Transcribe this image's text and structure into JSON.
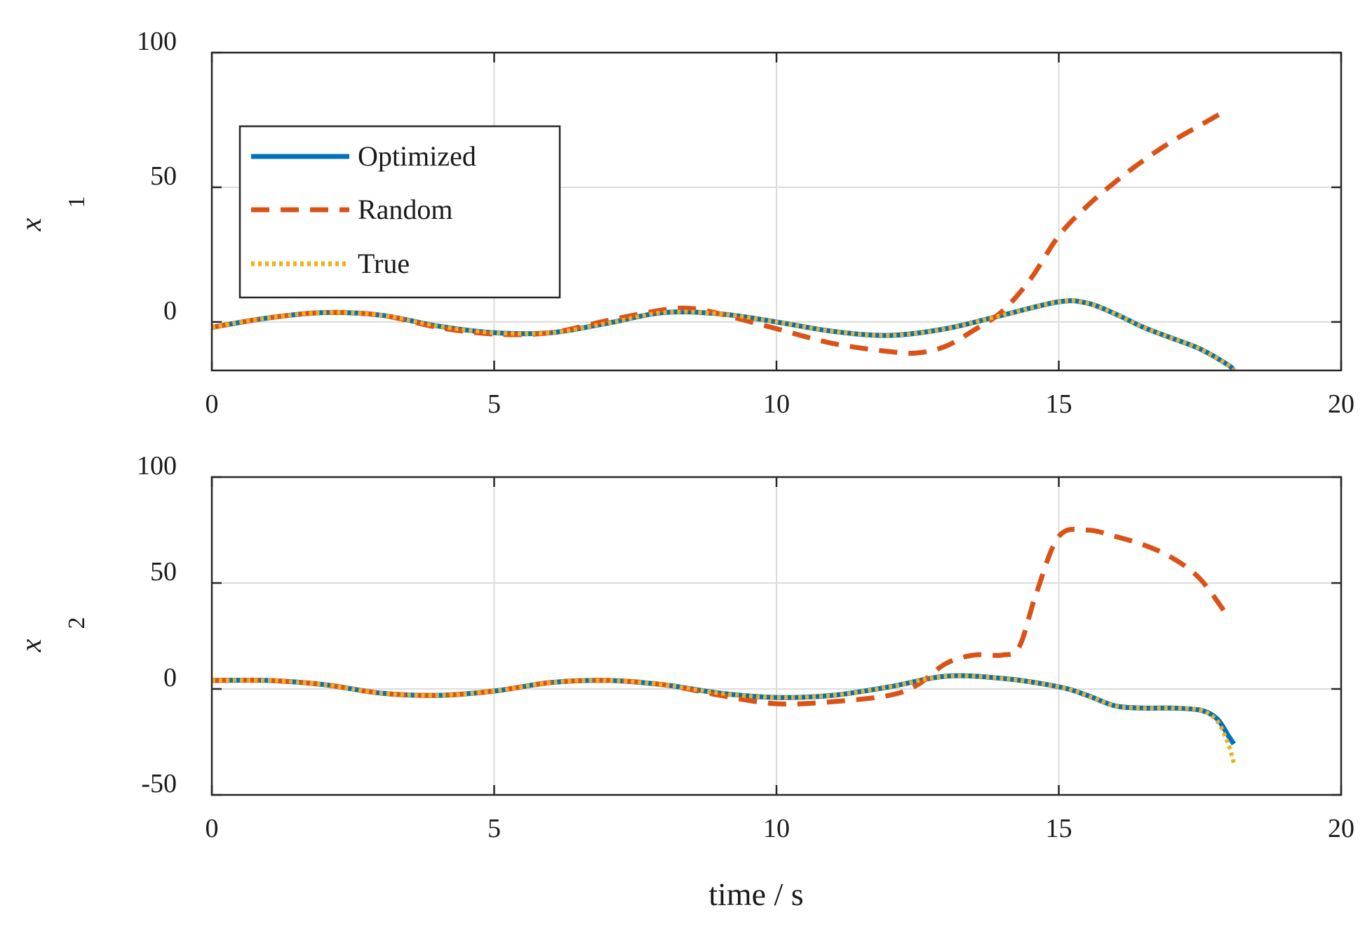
{
  "chart_data": [
    {
      "type": "line",
      "id": "x1",
      "ylabel": "x",
      "ylabel_sub": "1",
      "xlabel": "",
      "xlim": [
        0,
        20
      ],
      "ylim": [
        -18,
        100
      ],
      "xticks": [
        0,
        5,
        10,
        15,
        20
      ],
      "xtick_labels": [
        "0",
        "5",
        "10",
        "15",
        "20"
      ],
      "yticks": [
        0,
        50,
        100
      ],
      "ytick_labels": [
        "0",
        "50",
        "100"
      ],
      "grid": true,
      "legend": {
        "placement": "upper-left",
        "entries": [
          "Optimized",
          "Random",
          "True"
        ]
      },
      "series": [
        {
          "name": "Optimized",
          "style": "solid",
          "color": "#0072BD",
          "x": [
            0,
            1,
            2,
            3,
            4,
            5,
            6,
            7,
            8,
            9,
            10,
            11,
            12,
            13,
            14,
            15,
            15.5,
            16,
            16.5,
            17,
            17.5,
            18,
            18.1
          ],
          "y": [
            -2,
            1.5,
            3.5,
            2.5,
            -1.5,
            -4,
            -4,
            -0.5,
            3.5,
            3,
            0,
            -3.5,
            -5,
            -2.5,
            2.5,
            7.5,
            7,
            3,
            -2,
            -6,
            -10,
            -16,
            -18
          ]
        },
        {
          "name": "Random",
          "style": "dashed",
          "color": "#D95319",
          "x": [
            0,
            1,
            2,
            3,
            4,
            5,
            6,
            7,
            8,
            8.5,
            9,
            10,
            11,
            12,
            12.5,
            13,
            13.5,
            14,
            14.5,
            15,
            15.5,
            16,
            16.5,
            17,
            17.5,
            18
          ],
          "y": [
            -2,
            1.5,
            3.5,
            2.5,
            -2,
            -4.5,
            -4,
            0.5,
            4.5,
            5,
            3,
            -2.5,
            -8,
            -11,
            -11.5,
            -9,
            -3,
            4,
            16,
            32,
            43,
            52,
            60,
            67,
            73,
            79
          ]
        },
        {
          "name": "True",
          "style": "dotted",
          "color": "#EDB120",
          "x": [
            0,
            1,
            2,
            3,
            4,
            5,
            6,
            7,
            8,
            9,
            10,
            11,
            12,
            13,
            14,
            15,
            15.5,
            16,
            16.5,
            17,
            17.5,
            18,
            18.1
          ],
          "y": [
            -2,
            1.5,
            3.5,
            2.5,
            -1.5,
            -4,
            -4,
            -0.5,
            3.5,
            3,
            0,
            -3.5,
            -5,
            -2.5,
            2.5,
            7.5,
            7,
            3,
            -2,
            -6,
            -10,
            -16,
            -18
          ]
        }
      ]
    },
    {
      "type": "line",
      "id": "x2",
      "ylabel": "x",
      "ylabel_sub": "2",
      "xlabel": "time / s",
      "xlim": [
        0,
        20
      ],
      "ylim": [
        -50,
        100
      ],
      "xticks": [
        0,
        5,
        10,
        15,
        20
      ],
      "xtick_labels": [
        "0",
        "5",
        "10",
        "15",
        "20"
      ],
      "yticks": [
        -50,
        0,
        50,
        100
      ],
      "ytick_labels": [
        "-50",
        "0",
        "50",
        "100"
      ],
      "grid": true,
      "series": [
        {
          "name": "Optimized",
          "style": "solid",
          "color": "#0072BD",
          "x": [
            0,
            1,
            2,
            3,
            4,
            5,
            6,
            7,
            8,
            9,
            10,
            11,
            12,
            13,
            14,
            15,
            15.5,
            16,
            16.5,
            17,
            17.5,
            17.8,
            18,
            18.1
          ],
          "y": [
            4,
            4,
            2,
            -2,
            -3,
            -1,
            3,
            4,
            2,
            -2,
            -4,
            -3,
            1,
            6,
            5,
            1,
            -3,
            -8,
            -9,
            -9,
            -10,
            -14,
            -22,
            -26
          ]
        },
        {
          "name": "Random",
          "style": "dashed",
          "color": "#D95319",
          "x": [
            0,
            1,
            2,
            3,
            4,
            5,
            6,
            7,
            8,
            9,
            10,
            11,
            12,
            12.5,
            13,
            13.5,
            14,
            14.3,
            14.6,
            15,
            15.5,
            16,
            16.5,
            17,
            17.5,
            18
          ],
          "y": [
            4,
            4,
            2,
            -2,
            -3,
            -1,
            3,
            4,
            2,
            -3,
            -7,
            -6,
            -3,
            2,
            12,
            16,
            16,
            20,
            45,
            72,
            75,
            72,
            68,
            62,
            52,
            34
          ]
        },
        {
          "name": "True",
          "style": "dotted",
          "color": "#EDB120",
          "x": [
            0,
            1,
            2,
            3,
            4,
            5,
            6,
            7,
            8,
            9,
            10,
            11,
            12,
            13,
            14,
            15,
            15.5,
            16,
            16.5,
            17,
            17.5,
            17.8,
            18,
            18.1
          ],
          "y": [
            4,
            4,
            2,
            -2,
            -3,
            -1,
            3,
            4,
            2,
            -2,
            -4,
            -3,
            1,
            6,
            5,
            1,
            -3,
            -8,
            -9,
            -9,
            -10,
            -15,
            -26,
            -35
          ]
        }
      ]
    }
  ]
}
